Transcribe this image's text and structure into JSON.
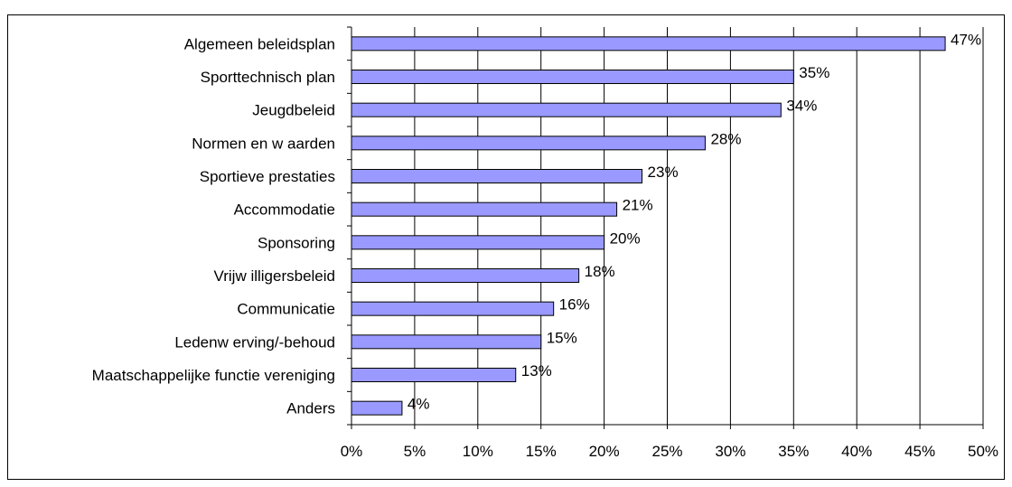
{
  "caption": "",
  "chart_data": {
    "type": "bar",
    "orientation": "horizontal",
    "title": "",
    "xlabel": "",
    "ylabel": "",
    "categories": [
      "Algemeen beleidsplan",
      "Sporttechnisch plan",
      "Jeugdbeleid",
      "Normen en w aarden",
      "Sportieve prestaties",
      "Accommodatie",
      "Sponsoring",
      "Vrijw illigersbeleid",
      "Communicatie",
      "Ledenw erving/-behoud",
      "Maatschappelijke functie vereniging",
      "Anders"
    ],
    "values": [
      47,
      35,
      34,
      28,
      23,
      21,
      20,
      18,
      16,
      15,
      13,
      4
    ],
    "value_labels": [
      "47%",
      "35%",
      "34%",
      "28%",
      "23%",
      "21%",
      "20%",
      "18%",
      "16%",
      "15%",
      "13%",
      "4%"
    ],
    "xlim": [
      0,
      50
    ],
    "x_ticks": [
      0,
      5,
      10,
      15,
      20,
      25,
      30,
      35,
      40,
      45,
      50
    ],
    "x_tick_labels": [
      "0%",
      "5%",
      "10%",
      "15%",
      "20%",
      "25%",
      "30%",
      "35%",
      "40%",
      "45%",
      "50%"
    ],
    "grid": "vertical",
    "legend": "none",
    "bar_color": "#9999FF",
    "bar_edge_color": "#000000"
  }
}
